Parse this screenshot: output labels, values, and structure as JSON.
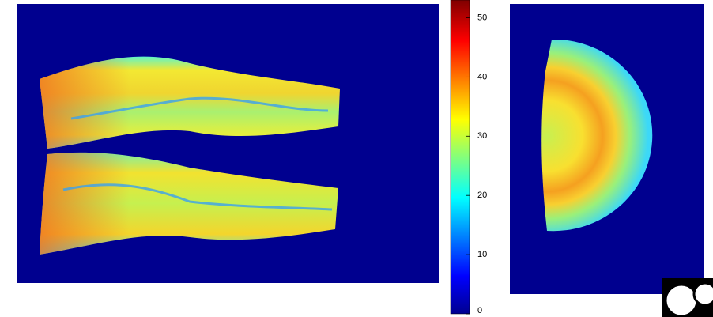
{
  "colorbar": {
    "lim": [
      0,
      53
    ],
    "ticks": [
      0,
      10,
      20,
      30,
      40,
      50
    ]
  }
}
